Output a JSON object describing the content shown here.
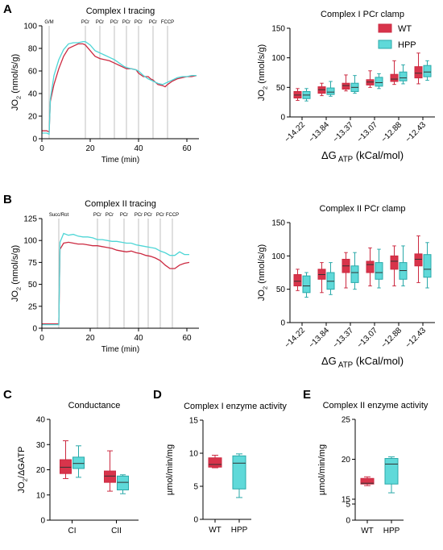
{
  "colors": {
    "wt": "#cc2a41",
    "hpp": "#4fd6d6",
    "wt_box": "#d8344b",
    "hpp_box": "#5fd9d9"
  },
  "panels": {
    "a": "A",
    "b": "B",
    "c": "C",
    "d": "D",
    "e": "E"
  },
  "legend": {
    "wt": "WT",
    "hpp": "HPP"
  },
  "chart_data": [
    {
      "id": "A1",
      "type": "line",
      "title": "Complex I tracing",
      "xlabel": "Time (min)",
      "ylabel": "JO2 (nmol/s/g)",
      "xlim": [
        0,
        65
      ],
      "ylim": [
        0,
        100
      ],
      "xticks": [
        0,
        20,
        40,
        60
      ],
      "yticks": [
        0,
        20,
        40,
        60,
        80,
        100
      ],
      "injections": [
        {
          "t": 3,
          "label": "G/M"
        },
        {
          "t": 18,
          "label": "PCr"
        },
        {
          "t": 24,
          "label": "PCr"
        },
        {
          "t": 30,
          "label": "PCr"
        },
        {
          "t": 35,
          "label": "PCr"
        },
        {
          "t": 40,
          "label": "PCr"
        },
        {
          "t": 46,
          "label": "PCr"
        },
        {
          "t": 52,
          "label": "FCCP"
        }
      ],
      "series": [
        {
          "name": "WT",
          "x": [
            0,
            2,
            3,
            3.5,
            5,
            7,
            9,
            11,
            13,
            15,
            17,
            18,
            20,
            22,
            24,
            26,
            28,
            30,
            32,
            34,
            35,
            37,
            39,
            40,
            42,
            44,
            45,
            46,
            48,
            50,
            51,
            52,
            54,
            56,
            58,
            60,
            62,
            64
          ],
          "y": [
            7,
            7,
            6,
            33,
            48,
            62,
            73,
            80,
            82,
            84,
            84,
            83,
            78,
            73,
            71,
            70,
            69,
            67,
            65,
            63,
            62,
            62,
            61,
            58,
            55,
            55,
            53,
            52,
            48,
            47,
            46,
            48,
            51,
            53,
            54,
            55,
            55,
            56
          ]
        },
        {
          "name": "HPP",
          "x": [
            0,
            2,
            3,
            3.5,
            5,
            7,
            9,
            11,
            13,
            15,
            17,
            18,
            20,
            22,
            24,
            26,
            28,
            30,
            32,
            34,
            35,
            37,
            39,
            40,
            42,
            44,
            45,
            46,
            48,
            50,
            51,
            52,
            54,
            56,
            58,
            60,
            62,
            64
          ],
          "y": [
            5,
            5,
            4,
            35,
            56,
            70,
            79,
            84,
            85,
            85,
            86,
            86,
            83,
            78,
            76,
            74,
            72,
            70,
            67,
            64,
            63,
            62,
            61,
            60,
            56,
            53,
            52,
            51,
            49,
            48,
            49,
            50,
            52,
            54,
            55,
            55,
            56,
            56
          ]
        }
      ]
    },
    {
      "id": "A2",
      "type": "box",
      "title": "Complex I PCr clamp",
      "xlabel": "ΔG ATP (kCal/mol)",
      "ylabel": "JO2 (nmol/s/g)",
      "ylim": [
        0,
        150
      ],
      "yticks": [
        0,
        50,
        100,
        150
      ],
      "categories": [
        "−14.22",
        "−13.84",
        "−13.37",
        "−13.07",
        "−12.88",
        "−12.43"
      ],
      "series": [
        {
          "name": "WT",
          "boxes": [
            [
              28,
              32,
              37,
              43,
              48
            ],
            [
              36,
              40,
              46,
              51,
              57
            ],
            [
              44,
              47,
              53,
              57,
              71
            ],
            [
              50,
              54,
              59,
              63,
              78
            ],
            [
              55,
              60,
              64,
              72,
              95
            ],
            [
              56,
              66,
              74,
              85,
              108
            ]
          ]
        },
        {
          "name": "HPP",
          "boxes": [
            [
              27,
              31,
              37,
              43,
              48
            ],
            [
              35,
              38,
              42,
              49,
              60
            ],
            [
              40,
              43,
              50,
              57,
              70
            ],
            [
              48,
              52,
              58,
              67,
              73
            ],
            [
              56,
              61,
              66,
              76,
              88
            ],
            [
              62,
              68,
              76,
              87,
              95
            ]
          ]
        }
      ]
    },
    {
      "id": "B1",
      "type": "line",
      "title": "Complex II tracing",
      "xlabel": "Time (min)",
      "ylabel": "JO2 (nmol/s/g)",
      "xlim": [
        0,
        65
      ],
      "ylim": [
        0,
        125
      ],
      "xticks": [
        0,
        20,
        40,
        60
      ],
      "yticks": [
        0,
        25,
        50,
        75,
        100,
        125
      ],
      "injections": [
        {
          "t": 7,
          "label": "Succ/Rot"
        },
        {
          "t": 23,
          "label": "PCr"
        },
        {
          "t": 28,
          "label": "PCr"
        },
        {
          "t": 34,
          "label": "PCr"
        },
        {
          "t": 40,
          "label": "PCr"
        },
        {
          "t": 44,
          "label": "PCr"
        },
        {
          "t": 49,
          "label": "PCr"
        },
        {
          "t": 54,
          "label": "FCCP"
        }
      ],
      "series": [
        {
          "name": "WT",
          "x": [
            0,
            3,
            6,
            7,
            7.5,
            9,
            11,
            13,
            15,
            17,
            19,
            21,
            23,
            25,
            27,
            29,
            31,
            33,
            35,
            37,
            39,
            41,
            43,
            45,
            47,
            49,
            51,
            53,
            55,
            57,
            59,
            61
          ],
          "y": [
            5,
            5,
            5,
            5,
            90,
            97,
            98,
            97,
            96,
            96,
            95,
            94,
            94,
            93,
            92,
            91,
            89,
            88,
            87,
            88,
            86,
            85,
            83,
            82,
            80,
            77,
            72,
            68,
            68,
            72,
            74,
            75
          ]
        },
        {
          "name": "HPP",
          "x": [
            0,
            3,
            6,
            7,
            7.5,
            9,
            11,
            13,
            15,
            17,
            19,
            21,
            23,
            25,
            27,
            29,
            31,
            33,
            35,
            37,
            39,
            41,
            43,
            45,
            47,
            49,
            51,
            53,
            55,
            57,
            59,
            61
          ],
          "y": [
            4,
            4,
            4,
            4,
            98,
            108,
            106,
            107,
            105,
            104,
            104,
            103,
            101,
            101,
            100,
            99,
            99,
            98,
            97,
            97,
            95,
            94,
            93,
            92,
            91,
            88,
            86,
            83,
            83,
            87,
            84,
            84
          ]
        }
      ]
    },
    {
      "id": "B2",
      "type": "box",
      "title": "Complex II PCr clamp",
      "xlabel": "ΔG ATP (kCal/mol)",
      "ylabel": "JO2 (nmol/s/g)",
      "ylim": [
        0,
        150
      ],
      "yticks": [
        0,
        50,
        100,
        150
      ],
      "categories": [
        "−14.22",
        "−13.84",
        "−13.37",
        "−13.07",
        "−12.88",
        "−12.43"
      ],
      "series": [
        {
          "name": "WT",
          "boxes": [
            [
              48,
              55,
              62,
              72,
              80
            ],
            [
              45,
              65,
              72,
              80,
              90
            ],
            [
              52,
              75,
              85,
              95,
              105
            ],
            [
              55,
              75,
              87,
              92,
              112
            ],
            [
              55,
              80,
              92,
              100,
              115
            ],
            [
              60,
              85,
              95,
              103,
              130
            ]
          ]
        },
        {
          "name": "HPP",
          "boxes": [
            [
              38,
              45,
              55,
              70,
              75
            ],
            [
              42,
              50,
              62,
              75,
              90
            ],
            [
              50,
              60,
              75,
              85,
              105
            ],
            [
              52,
              65,
              75,
              90,
              110
            ],
            [
              55,
              65,
              78,
              90,
              115
            ],
            [
              52,
              68,
              80,
              102,
              120
            ]
          ]
        }
      ]
    },
    {
      "id": "C",
      "type": "box",
      "title": "Conductance",
      "ylabel": "JO2/ΔGATP",
      "ylim": [
        0,
        40
      ],
      "yticks": [
        0,
        10,
        20,
        30,
        40
      ],
      "categories": [
        "CI",
        "CII"
      ],
      "series": [
        {
          "name": "WT",
          "boxes": [
            [
              16.5,
              18.5,
              21,
              24,
              31.5
            ],
            [
              11.5,
              15,
              17.5,
              19.5,
              27.5
            ]
          ]
        },
        {
          "name": "HPP",
          "boxes": [
            [
              17,
              20.5,
              22.5,
              25,
              29.5
            ],
            [
              10.5,
              12,
              15,
              17.5,
              18
            ]
          ]
        }
      ]
    },
    {
      "id": "D",
      "type": "box",
      "title": "Complex I enzyme activity",
      "ylabel": "µmol/min/mg",
      "ylim": [
        0,
        15
      ],
      "yticks": [
        0,
        5,
        10,
        15
      ],
      "categories": [
        "WT",
        "HPP"
      ],
      "series": [
        {
          "name": "WT",
          "boxes": [
            [
              7.8,
              7.9,
              8.3,
              9.3,
              9.7
            ]
          ]
        },
        {
          "name": "HPP",
          "boxes": [
            [
              3.3,
              4.6,
              8.5,
              9.6,
              9.9
            ]
          ]
        }
      ]
    },
    {
      "id": "E",
      "type": "box",
      "title": "Complex II enzyme activity",
      "ylabel": "µmol/min/mg",
      "ylim": [
        0,
        25
      ],
      "yticks": [
        0,
        5,
        15,
        20,
        25
      ],
      "categories": [
        "WT",
        "HPP"
      ],
      "series": [
        {
          "name": "WT",
          "boxes": [
            [
              16.7,
              16.9,
              17.0,
              17.6,
              17.8
            ]
          ]
        },
        {
          "name": "HPP",
          "boxes": [
            [
              15.8,
              16.9,
              19.4,
              20.1,
              20.3
            ]
          ]
        }
      ]
    }
  ]
}
